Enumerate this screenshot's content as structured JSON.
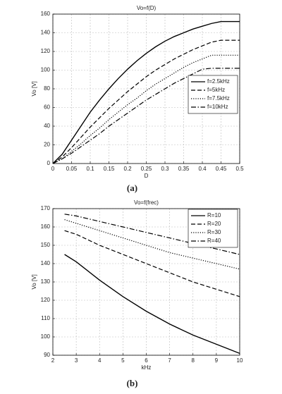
{
  "chart_data": [
    {
      "type": "line",
      "title": "Vo=f(D)",
      "x_label": "D",
      "y_label": "Vo [V]",
      "caption": "(a)",
      "x": [
        0,
        0.025,
        0.05,
        0.075,
        0.1,
        0.125,
        0.15,
        0.175,
        0.2,
        0.225,
        0.25,
        0.275,
        0.3,
        0.325,
        0.35,
        0.375,
        0.4,
        0.425,
        0.45,
        0.475,
        0.5
      ],
      "series": [
        {
          "name": "f=2.5kHz",
          "color": "#000000",
          "dash": "solid",
          "values": [
            0,
            10,
            25,
            40,
            55,
            68,
            80,
            91,
            101,
            110,
            118,
            125,
            131,
            136,
            140,
            144,
            147,
            150,
            152,
            152,
            152
          ]
        },
        {
          "name": "f=5kHz",
          "color": "#000000",
          "dash": "dashed",
          "values": [
            0,
            7,
            17,
            28,
            39,
            49,
            59,
            68,
            77,
            85,
            93,
            100,
            106,
            112,
            117,
            122,
            126,
            130,
            132,
            132,
            132
          ]
        },
        {
          "name": "f=7.5kHz",
          "color": "#000000",
          "dash": "dotted",
          "values": [
            0,
            5,
            13,
            21,
            30,
            38,
            47,
            55,
            63,
            70,
            78,
            85,
            91,
            97,
            103,
            108,
            112,
            116,
            116,
            116,
            116
          ]
        },
        {
          "name": "f=10kHz",
          "color": "#000000",
          "dash": "dashdot",
          "values": [
            0,
            5,
            11,
            18,
            25,
            32,
            40,
            47,
            54,
            61,
            68,
            74,
            80,
            86,
            91,
            96,
            101,
            102,
            102,
            102,
            102
          ]
        }
      ],
      "xlim": [
        0,
        0.5
      ],
      "xticks": [
        0,
        0.05,
        0.1,
        0.15,
        0.2,
        0.25,
        0.3,
        0.35,
        0.4,
        0.45,
        0.5
      ],
      "ylim": [
        0,
        160
      ],
      "yticks": [
        0,
        20,
        40,
        60,
        80,
        100,
        120,
        140,
        160
      ],
      "grid": true,
      "legend": "center right"
    },
    {
      "type": "line",
      "title": "Vo=f(frec)",
      "x_label": "kHz",
      "y_label": "Vo [V]",
      "caption": "(b)",
      "x": [
        2.5,
        3,
        4,
        5,
        6,
        7,
        8,
        9,
        10
      ],
      "series": [
        {
          "name": "R=10",
          "color": "#000000",
          "dash": "solid",
          "values": [
            145,
            141,
            131,
            122,
            114,
            107,
            101,
            96,
            91
          ]
        },
        {
          "name": "R=20",
          "color": "#000000",
          "dash": "dashed",
          "values": [
            158,
            156,
            150,
            145,
            140,
            135,
            130,
            126,
            122
          ]
        },
        {
          "name": "R=30",
          "color": "#000000",
          "dash": "dotted",
          "values": [
            164,
            162,
            158,
            154,
            150,
            146,
            143,
            140,
            137
          ]
        },
        {
          "name": "R=40",
          "color": "#000000",
          "dash": "dashdot",
          "values": [
            167,
            166,
            163,
            160,
            157,
            154,
            151,
            148,
            145
          ]
        }
      ],
      "xlim": [
        2,
        10
      ],
      "xticks": [
        2,
        3,
        4,
        5,
        6,
        7,
        8,
        9,
        10
      ],
      "ylim": [
        90,
        170
      ],
      "yticks": [
        90,
        100,
        110,
        120,
        130,
        140,
        150,
        160,
        170
      ],
      "grid": true,
      "legend": "upper right"
    }
  ]
}
